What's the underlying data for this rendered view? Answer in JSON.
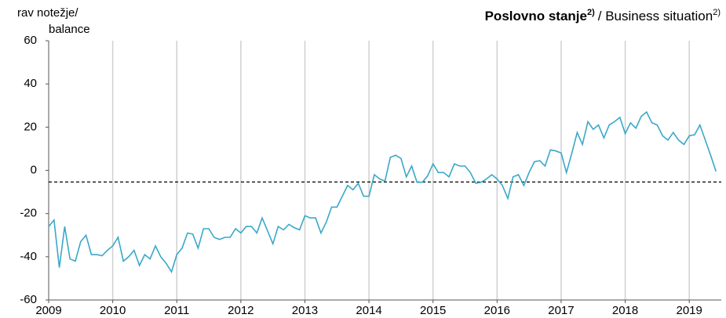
{
  "chart_data": {
    "type": "line",
    "title": "Poslovno stanje",
    "title_note": "2)",
    "subtitle": "/ Business situation",
    "subtitle_note": "2)",
    "y_label": [
      "rav notežje/",
      "balance"
    ],
    "xlim": [
      2009,
      2019.5
    ],
    "xticks": [
      2009,
      2010,
      2011,
      2012,
      2013,
      2014,
      2015,
      2016,
      2017,
      2018,
      2019
    ],
    "ylim": [
      -60,
      60
    ],
    "yticks": [
      -60,
      -40,
      -20,
      0,
      20,
      40,
      60
    ],
    "grid": true,
    "reference_line": -5.4,
    "x": [
      2009,
      2009.083,
      2009.167,
      2009.25,
      2009.333,
      2009.417,
      2009.5,
      2009.583,
      2009.667,
      2009.75,
      2009.833,
      2009.917,
      2010,
      2010.083,
      2010.167,
      2010.25,
      2010.333,
      2010.417,
      2010.5,
      2010.583,
      2010.667,
      2010.75,
      2010.833,
      2010.917,
      2011,
      2011.083,
      2011.167,
      2011.25,
      2011.333,
      2011.417,
      2011.5,
      2011.583,
      2011.667,
      2011.75,
      2011.833,
      2011.917,
      2012,
      2012.083,
      2012.167,
      2012.25,
      2012.333,
      2012.417,
      2012.5,
      2012.583,
      2012.667,
      2012.75,
      2012.833,
      2012.917,
      2013,
      2013.083,
      2013.167,
      2013.25,
      2013.333,
      2013.417,
      2013.5,
      2013.583,
      2013.667,
      2013.75,
      2013.833,
      2013.917,
      2014,
      2014.083,
      2014.167,
      2014.25,
      2014.333,
      2014.417,
      2014.5,
      2014.583,
      2014.667,
      2014.75,
      2014.833,
      2014.917,
      2015,
      2015.083,
      2015.167,
      2015.25,
      2015.333,
      2015.417,
      2015.5,
      2015.583,
      2015.667,
      2015.75,
      2015.833,
      2015.917,
      2016,
      2016.083,
      2016.167,
      2016.25,
      2016.333,
      2016.417,
      2016.5,
      2016.583,
      2016.667,
      2016.75,
      2016.833,
      2016.917,
      2017,
      2017.083,
      2017.167,
      2017.25,
      2017.333,
      2017.417,
      2017.5,
      2017.583,
      2017.667,
      2017.75,
      2017.833,
      2017.917,
      2018,
      2018.083,
      2018.167,
      2018.25,
      2018.333,
      2018.417,
      2018.5,
      2018.583,
      2018.667,
      2018.75,
      2018.833,
      2018.917,
      2019,
      2019.083,
      2019.167,
      2019.25,
      2019.333,
      2019.417
    ],
    "series": [
      {
        "color": "#3aa8c8",
        "values": [
          -26,
          -23,
          -45,
          -26,
          -41,
          -42,
          -33,
          -30,
          -39,
          -39,
          -39.5,
          -37,
          -35,
          -31,
          -42,
          -40,
          -37,
          -44,
          -39,
          -41,
          -35,
          -40,
          -43,
          -47,
          -39,
          -36,
          -29,
          -29.5,
          -36,
          -27,
          -27,
          -31,
          -32,
          -31,
          -31,
          -27,
          -29,
          -26,
          -26,
          -29,
          -22,
          -28,
          -34,
          -26,
          -27.5,
          -25,
          -26.5,
          -27.5,
          -21,
          -22,
          -22,
          -29,
          -24,
          -17,
          -17,
          -12,
          -7,
          -9,
          -6,
          -12,
          -12,
          -2,
          -4,
          -5,
          6,
          7,
          5.5,
          -3,
          2,
          -5.5,
          -5.5,
          -2.5,
          3,
          -1,
          -1,
          -3,
          3,
          2,
          2,
          -1,
          -6,
          -5.5,
          -4,
          -2,
          -4,
          -7,
          -13,
          -3,
          -2,
          -7,
          -1,
          4,
          4.5,
          2,
          9.5,
          9,
          8,
          -1,
          8,
          17.5,
          12,
          22.5,
          19,
          21,
          15,
          21,
          22.5,
          24.5,
          17,
          22,
          19.5,
          25,
          27,
          22,
          21,
          16,
          14,
          17.5,
          14,
          12,
          16,
          16.5,
          21,
          14,
          7,
          -0.5
        ]
      }
    ]
  }
}
